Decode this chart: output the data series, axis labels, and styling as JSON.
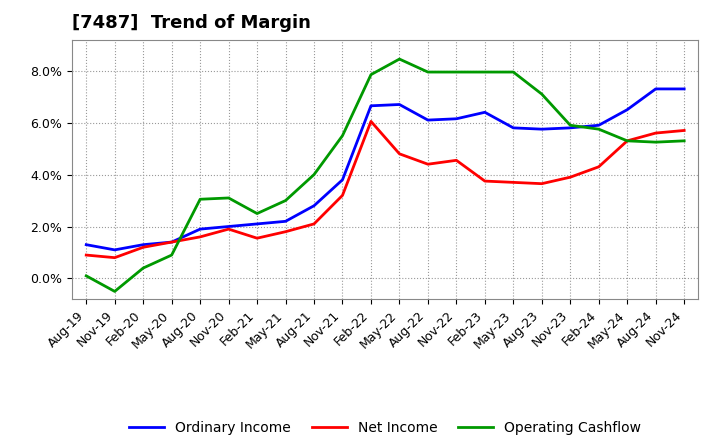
{
  "title": "[7487]  Trend of Margin",
  "x_labels": [
    "Aug-19",
    "Nov-19",
    "Feb-20",
    "May-20",
    "Aug-20",
    "Nov-20",
    "Feb-21",
    "May-21",
    "Aug-21",
    "Nov-21",
    "Feb-22",
    "May-22",
    "Aug-22",
    "Nov-22",
    "Feb-23",
    "May-23",
    "Aug-23",
    "Nov-23",
    "Feb-24",
    "May-24",
    "Aug-24",
    "Nov-24"
  ],
  "ordinary_income": [
    1.3,
    1.1,
    1.3,
    1.4,
    1.9,
    2.0,
    2.1,
    2.2,
    2.8,
    3.8,
    6.65,
    6.7,
    6.1,
    6.15,
    6.4,
    5.8,
    5.75,
    5.8,
    5.9,
    6.5,
    7.3,
    7.3
  ],
  "net_income": [
    0.9,
    0.8,
    1.2,
    1.4,
    1.6,
    1.9,
    1.55,
    1.8,
    2.1,
    3.2,
    6.05,
    4.8,
    4.4,
    4.55,
    3.75,
    3.7,
    3.65,
    3.9,
    4.3,
    5.3,
    5.6,
    5.7
  ],
  "operating_cashflow": [
    0.1,
    -0.5,
    0.4,
    0.9,
    3.05,
    3.1,
    2.5,
    3.0,
    4.0,
    5.5,
    7.85,
    8.45,
    7.95,
    7.95,
    7.95,
    7.95,
    7.1,
    5.9,
    5.75,
    5.3,
    5.25,
    5.3
  ],
  "line_colors": {
    "ordinary_income": "#0000FF",
    "net_income": "#FF0000",
    "operating_cashflow": "#009900"
  },
  "legend_labels": [
    "Ordinary Income",
    "Net Income",
    "Operating Cashflow"
  ],
  "ylim": [
    -0.8,
    9.2
  ],
  "yticks": [
    0.0,
    2.0,
    4.0,
    6.0,
    8.0
  ],
  "background_color": "#FFFFFF",
  "plot_bg_color": "#FFFFFF",
  "grid_color": "#999999",
  "title_fontsize": 13,
  "tick_fontsize": 9,
  "legend_fontsize": 10,
  "line_width": 2.0
}
